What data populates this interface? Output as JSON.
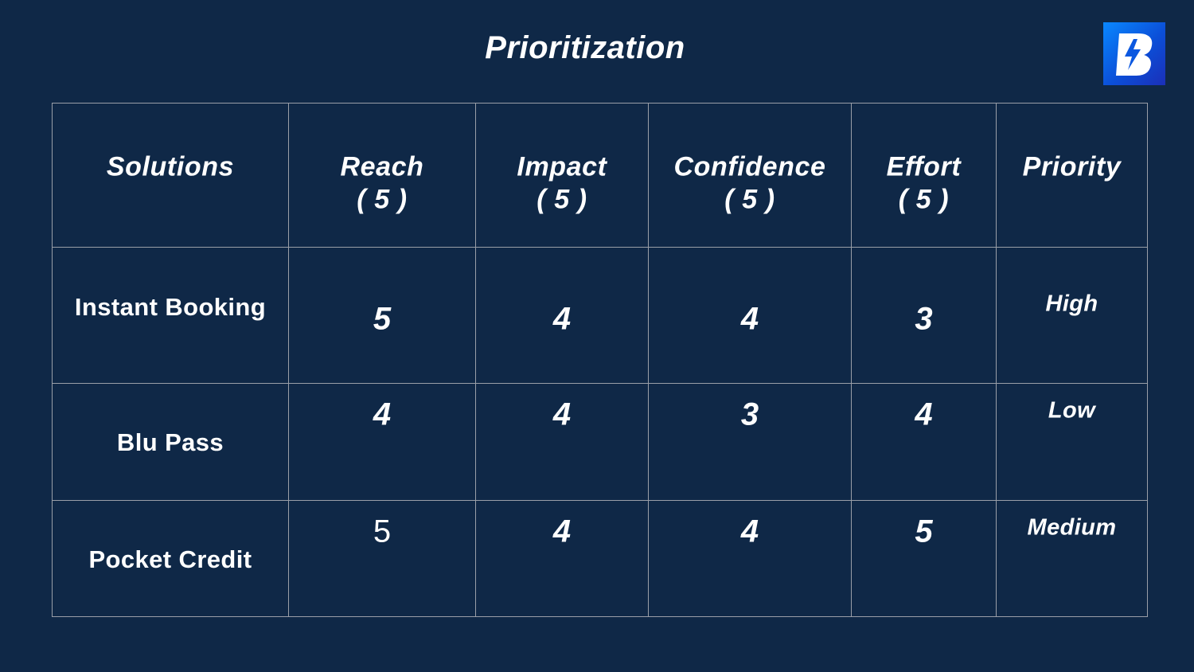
{
  "title": "Prioritization",
  "logo_icon": "brand-b-bolt-logo",
  "colors": {
    "background": "#0f2847",
    "grid_line": "#9a9fa8",
    "text": "#ffffff",
    "logo_gradient_start": "#0a88ff",
    "logo_gradient_end": "#1b2fb8"
  },
  "table": {
    "headers": [
      {
        "label": "Solutions",
        "sub": ""
      },
      {
        "label": "Reach",
        "sub": "( 5 )"
      },
      {
        "label": "Impact",
        "sub": "( 5 )"
      },
      {
        "label": "Confidence",
        "sub": "( 5 )"
      },
      {
        "label": "Effort",
        "sub": "( 5 )"
      },
      {
        "label": "Priority",
        "sub": ""
      }
    ],
    "rows": [
      {
        "solution": "Instant Booking",
        "reach": "5",
        "impact": "4",
        "confidence": "4",
        "effort": "3",
        "priority": "High"
      },
      {
        "solution": "Blu Pass",
        "reach": "4",
        "impact": "4",
        "confidence": "3",
        "effort": "4",
        "priority": "Low"
      },
      {
        "solution": "Pocket Credit",
        "reach": "5",
        "impact": "4",
        "confidence": "4",
        "effort": "5",
        "priority": "Medium"
      }
    ]
  }
}
